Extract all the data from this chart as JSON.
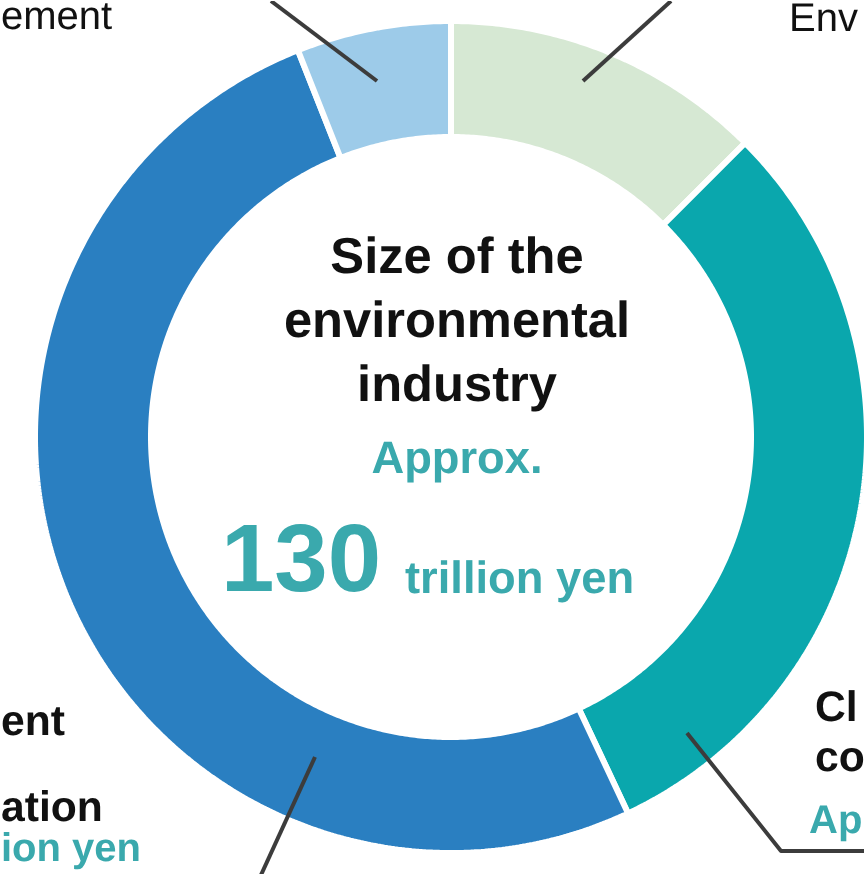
{
  "chart_data": {
    "type": "donut",
    "title": "Size of the environmental industry",
    "categories": [
      null,
      null,
      null,
      null
    ],
    "values": [
      12.5,
      30.5,
      51,
      6
    ],
    "colors": [
      "#d6e8d3",
      "#0aa7ad",
      "#2a7fc1",
      "#9dcbe9"
    ],
    "annotations": [
      "Approx.",
      "130",
      "trillion yen",
      "ement",
      "Env",
      "Cl",
      "co",
      "Ap",
      "ent",
      "ation",
      "ion yen"
    ]
  }
}
